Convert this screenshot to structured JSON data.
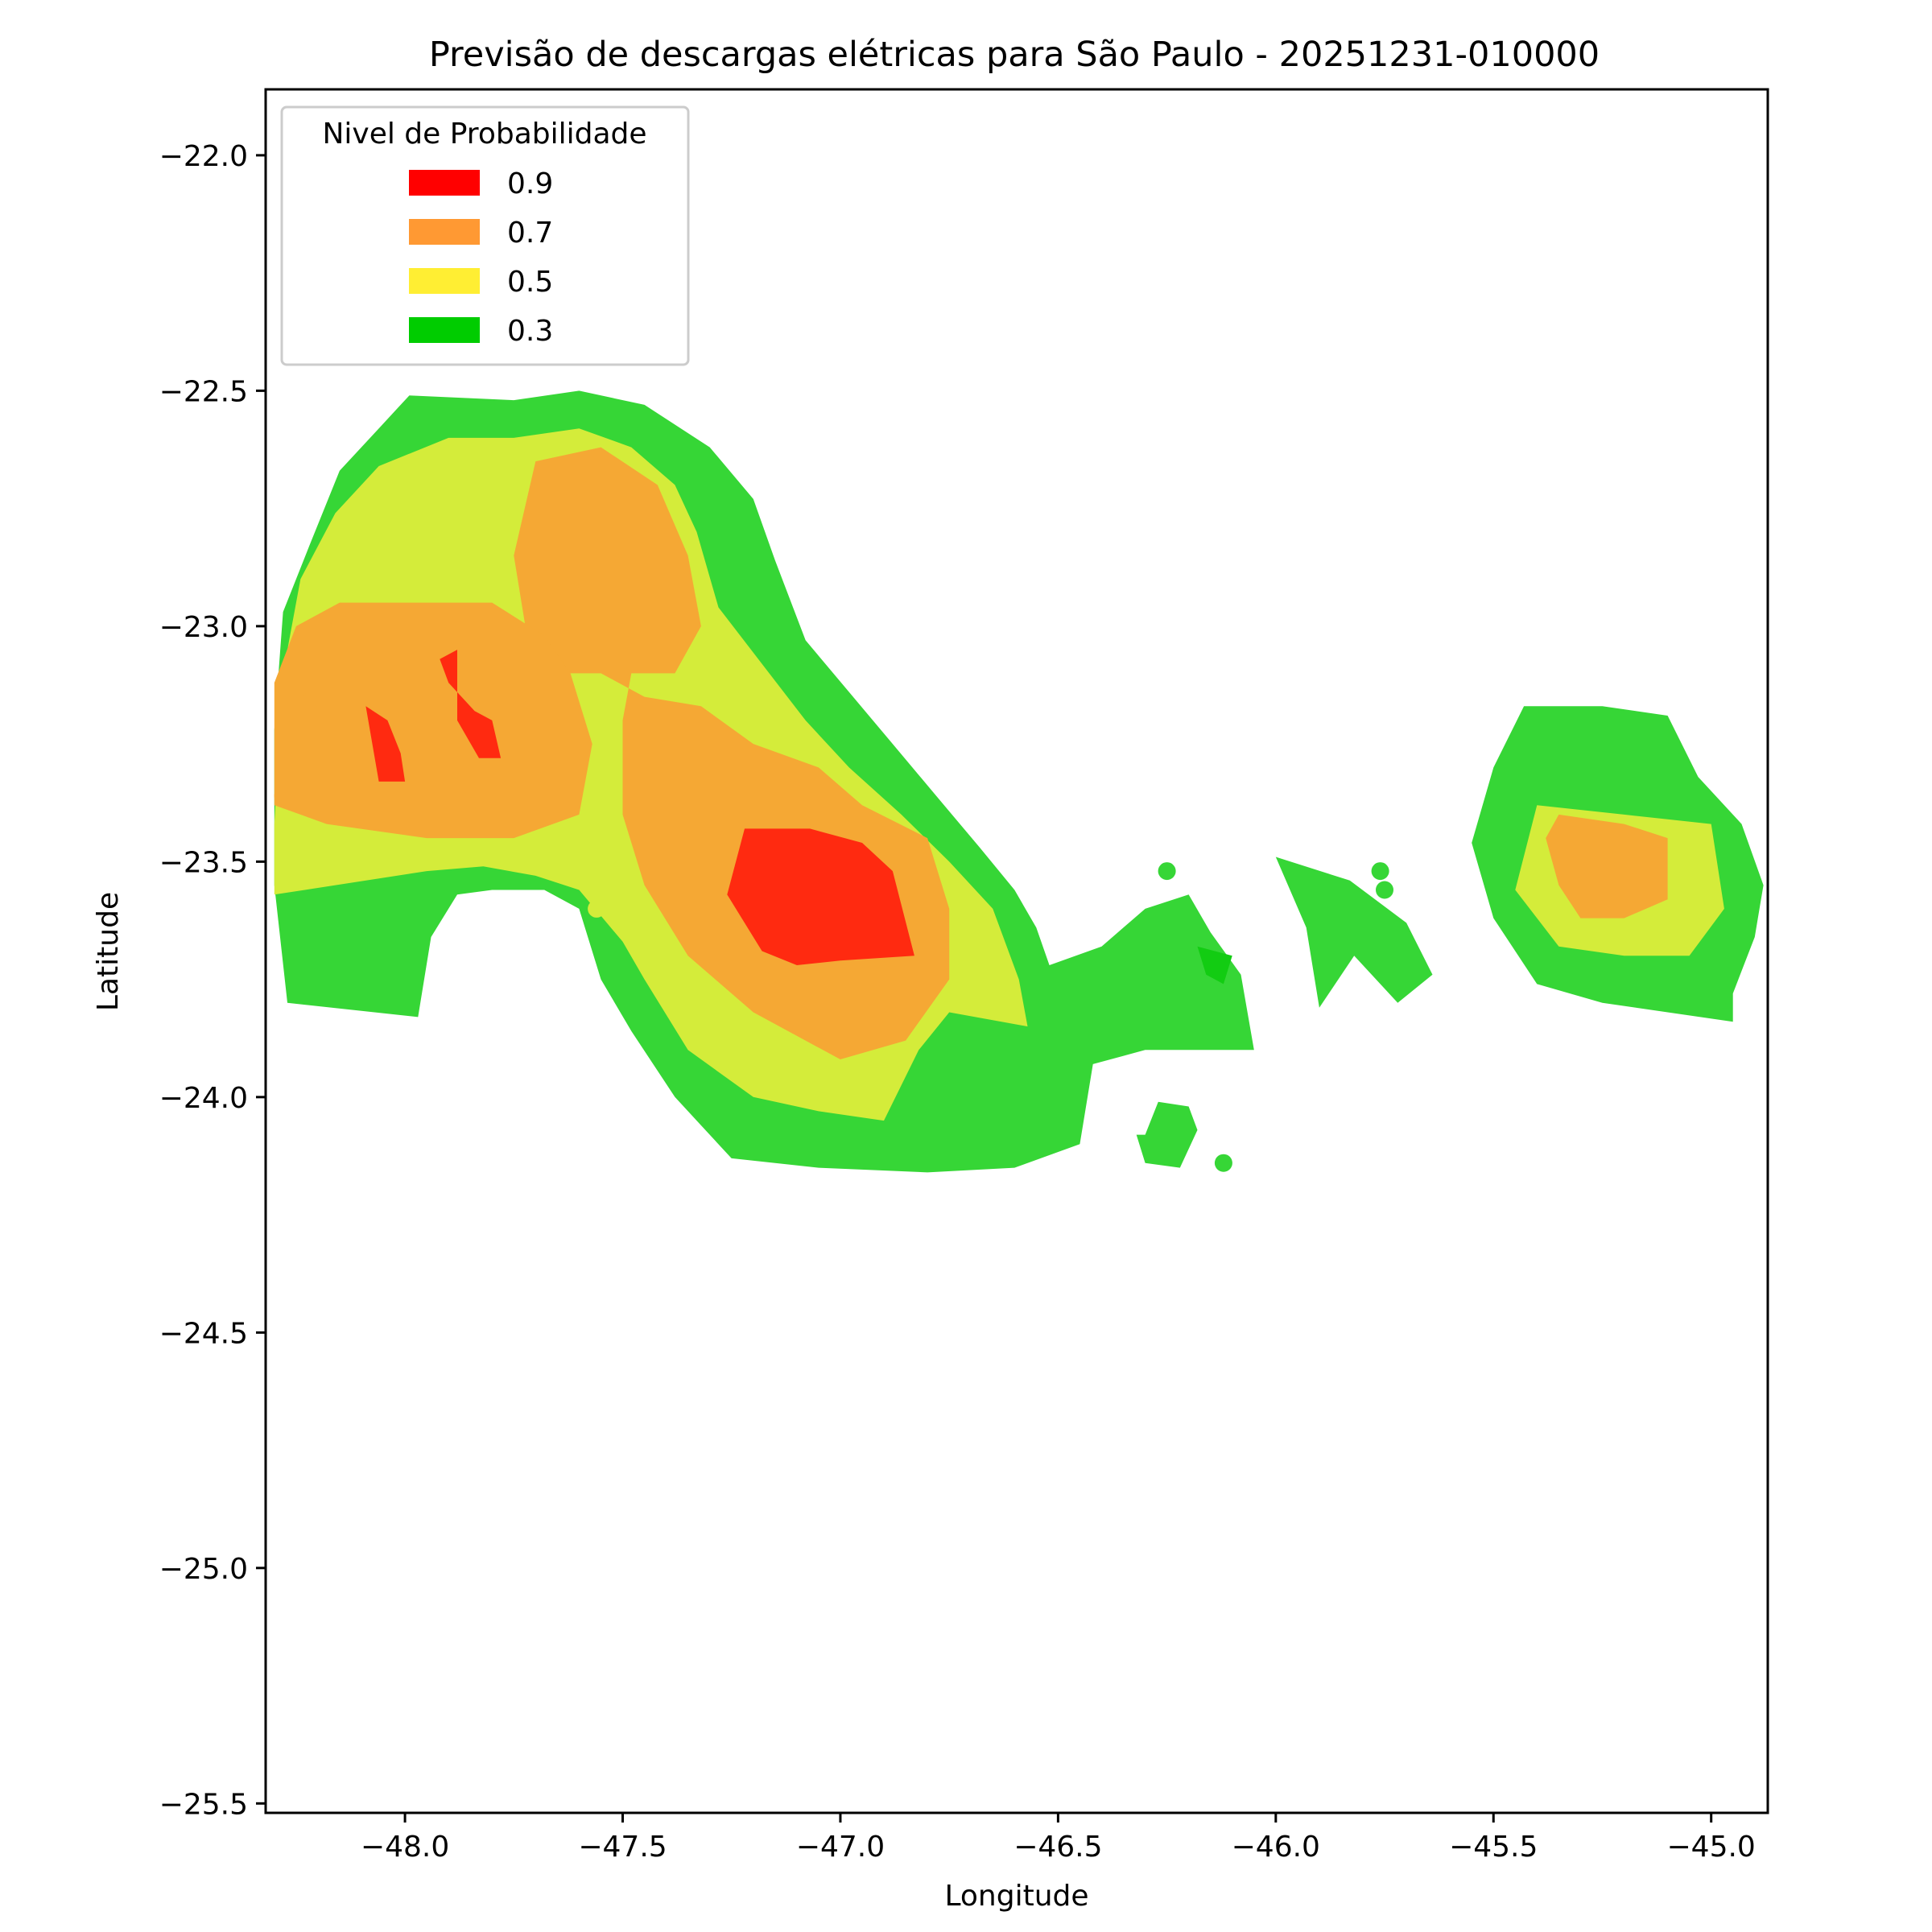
{
  "chart_data": {
    "type": "filled-contour-map",
    "title": "Previsão de descargas elétricas para São Paulo - 20251231-010000",
    "xlabel": "Longitude",
    "ylabel": "Latitude",
    "xlim": [
      -48.32,
      -44.87
    ],
    "ylim": [
      -25.52,
      -21.86
    ],
    "xticks": [
      -48.0,
      -47.5,
      -47.0,
      -46.5,
      -46.0,
      -45.5,
      -45.0
    ],
    "yticks": [
      -22.0,
      -22.5,
      -23.0,
      -23.5,
      -24.0,
      -24.5,
      -25.0,
      -25.5
    ],
    "xtick_labels": [
      "−48.0",
      "−47.5",
      "−47.0",
      "−46.5",
      "−46.0",
      "−45.5",
      "−45.0"
    ],
    "ytick_labels": [
      "−22.0",
      "−22.5",
      "−23.0",
      "−23.5",
      "−24.0",
      "−24.5",
      "−25.0",
      "−25.5"
    ],
    "grid": false,
    "legend": {
      "title": "Nivel de Probabilidade",
      "placement": "upper-left",
      "entries": [
        {
          "label": "0.9",
          "color": "#ff0000"
        },
        {
          "label": "0.7",
          "color": "#ff9933"
        },
        {
          "label": "0.5",
          "color": "#ffee33"
        },
        {
          "label": "0.3",
          "color": "#00cc00"
        }
      ]
    },
    "fill_colors": {
      "0.3": "#36d636",
      "0.5": "#d4ec3a",
      "0.7": "#f5a834",
      "0.9": "#ff2a10",
      "0.3_dot": "#12cc12"
    },
    "regions": [
      {
        "level": "0.3",
        "coords": [
          [
            -47.99,
            -22.51
          ],
          [
            -47.75,
            -22.52
          ],
          [
            -47.6,
            -22.5
          ],
          [
            -47.45,
            -22.53
          ],
          [
            -47.3,
            -22.62
          ],
          [
            -47.2,
            -22.73
          ],
          [
            -47.15,
            -22.86
          ],
          [
            -47.08,
            -23.03
          ],
          [
            -46.98,
            -23.14
          ],
          [
            -46.88,
            -23.25
          ],
          [
            -46.78,
            -23.36
          ],
          [
            -46.68,
            -23.47
          ],
          [
            -46.6,
            -23.56
          ],
          [
            -46.55,
            -23.64
          ],
          [
            -46.52,
            -23.72
          ],
          [
            -46.4,
            -23.68
          ],
          [
            -46.3,
            -23.6
          ],
          [
            -46.2,
            -23.57
          ],
          [
            -46.15,
            -23.65
          ],
          [
            -46.08,
            -23.74
          ],
          [
            -46.05,
            -23.9
          ],
          [
            -46.3,
            -23.9
          ],
          [
            -46.42,
            -23.93
          ],
          [
            -46.45,
            -24.1
          ],
          [
            -46.6,
            -24.15
          ],
          [
            -46.8,
            -24.16
          ],
          [
            -47.05,
            -24.15
          ],
          [
            -47.25,
            -24.13
          ],
          [
            -47.38,
            -24.0
          ],
          [
            -47.48,
            -23.86
          ],
          [
            -47.55,
            -23.75
          ],
          [
            -47.6,
            -23.6
          ],
          [
            -47.68,
            -23.56
          ],
          [
            -47.8,
            -23.56
          ],
          [
            -47.88,
            -23.57
          ],
          [
            -47.94,
            -23.66
          ],
          [
            -47.97,
            -23.83
          ],
          [
            -48.27,
            -23.8
          ],
          [
            -48.3,
            -23.55
          ],
          [
            -48.3,
            -23.22
          ],
          [
            -48.28,
            -22.97
          ],
          [
            -48.22,
            -22.83
          ],
          [
            -48.15,
            -22.67
          ],
          [
            -48.06,
            -22.58
          ]
        ]
      },
      {
        "level": "0.3",
        "coords": [
          [
            -46.0,
            -23.49
          ],
          [
            -45.83,
            -23.54
          ],
          [
            -45.7,
            -23.63
          ],
          [
            -45.64,
            -23.74
          ],
          [
            -45.72,
            -23.8
          ],
          [
            -45.82,
            -23.7
          ],
          [
            -45.9,
            -23.81
          ],
          [
            -45.93,
            -23.64
          ]
        ]
      },
      {
        "level": "0.3",
        "coords": [
          [
            -46.27,
            -24.01
          ],
          [
            -46.2,
            -24.02
          ],
          [
            -46.18,
            -24.07
          ],
          [
            -46.22,
            -24.15
          ],
          [
            -46.3,
            -24.14
          ],
          [
            -46.32,
            -24.08
          ],
          [
            -46.3,
            -24.08
          ]
        ]
      },
      {
        "level": "0.3",
        "coords": [
          [
            -45.43,
            -23.17
          ],
          [
            -45.25,
            -23.17
          ],
          [
            -45.1,
            -23.19
          ],
          [
            -45.03,
            -23.32
          ],
          [
            -44.93,
            -23.42
          ],
          [
            -44.88,
            -23.55
          ],
          [
            -44.9,
            -23.66
          ],
          [
            -44.95,
            -23.78
          ],
          [
            -44.95,
            -23.84
          ],
          [
            -45.1,
            -23.82
          ],
          [
            -45.25,
            -23.8
          ],
          [
            -45.4,
            -23.76
          ],
          [
            -45.5,
            -23.62
          ],
          [
            -45.55,
            -23.46
          ],
          [
            -45.5,
            -23.3
          ]
        ]
      },
      {
        "level": "0.5",
        "coords": [
          [
            -47.9,
            -22.6
          ],
          [
            -47.75,
            -22.6
          ],
          [
            -47.6,
            -22.58
          ],
          [
            -47.48,
            -22.62
          ],
          [
            -47.38,
            -22.7
          ],
          [
            -47.33,
            -22.8
          ],
          [
            -47.28,
            -22.96
          ],
          [
            -47.18,
            -23.08
          ],
          [
            -47.08,
            -23.2
          ],
          [
            -46.98,
            -23.3
          ],
          [
            -46.86,
            -23.4
          ],
          [
            -46.75,
            -23.5
          ],
          [
            -46.65,
            -23.6
          ],
          [
            -46.59,
            -23.75
          ],
          [
            -46.57,
            -23.85
          ],
          [
            -46.75,
            -23.82
          ],
          [
            -46.82,
            -23.9
          ],
          [
            -46.9,
            -24.05
          ],
          [
            -47.05,
            -24.03
          ],
          [
            -47.2,
            -24.0
          ],
          [
            -47.35,
            -23.9
          ],
          [
            -47.45,
            -23.75
          ],
          [
            -47.5,
            -23.67
          ],
          [
            -47.6,
            -23.56
          ],
          [
            -47.7,
            -23.53
          ],
          [
            -47.82,
            -23.51
          ],
          [
            -47.95,
            -23.52
          ],
          [
            -48.3,
            -23.57
          ],
          [
            -48.3,
            -23.42
          ],
          [
            -48.28,
            -23.1
          ],
          [
            -48.24,
            -22.9
          ],
          [
            -48.16,
            -22.76
          ],
          [
            -48.06,
            -22.66
          ]
        ]
      },
      {
        "level": "0.5",
        "coords": [
          [
            -45.4,
            -23.38
          ],
          [
            -45.2,
            -23.4
          ],
          [
            -45.0,
            -23.42
          ],
          [
            -44.97,
            -23.6
          ],
          [
            -45.05,
            -23.7
          ],
          [
            -45.2,
            -23.7
          ],
          [
            -45.35,
            -23.68
          ],
          [
            -45.45,
            -23.56
          ]
        ]
      },
      {
        "level": "0.7",
        "coords": [
          [
            -47.7,
            -22.65
          ],
          [
            -47.55,
            -22.62
          ],
          [
            -47.42,
            -22.7
          ],
          [
            -47.35,
            -22.85
          ],
          [
            -47.32,
            -23.0
          ],
          [
            -47.38,
            -23.1
          ],
          [
            -47.48,
            -23.1
          ],
          [
            -47.5,
            -23.2
          ],
          [
            -47.5,
            -23.4
          ],
          [
            -47.45,
            -23.55
          ],
          [
            -47.35,
            -23.7
          ],
          [
            -47.2,
            -23.82
          ],
          [
            -47.0,
            -23.92
          ],
          [
            -46.85,
            -23.88
          ],
          [
            -46.75,
            -23.75
          ],
          [
            -46.75,
            -23.6
          ],
          [
            -46.8,
            -23.45
          ],
          [
            -46.95,
            -23.38
          ],
          [
            -47.05,
            -23.3
          ],
          [
            -47.2,
            -23.25
          ],
          [
            -47.32,
            -23.17
          ],
          [
            -47.45,
            -23.15
          ],
          [
            -47.55,
            -23.1
          ],
          [
            -47.65,
            -23.1
          ],
          [
            -47.72,
            -23.02
          ],
          [
            -47.75,
            -22.85
          ]
        ]
      },
      {
        "level": "0.7",
        "coords": [
          [
            -48.15,
            -22.95
          ],
          [
            -47.95,
            -22.95
          ],
          [
            -47.8,
            -22.95
          ],
          [
            -47.68,
            -23.02
          ],
          [
            -47.62,
            -23.1
          ],
          [
            -47.57,
            -23.25
          ],
          [
            -47.6,
            -23.4
          ],
          [
            -47.75,
            -23.45
          ],
          [
            -47.95,
            -23.45
          ],
          [
            -48.18,
            -23.42
          ],
          [
            -48.3,
            -23.38
          ],
          [
            -48.3,
            -23.12
          ],
          [
            -48.25,
            -23.0
          ]
        ]
      },
      {
        "level": "0.7",
        "coords": [
          [
            -45.35,
            -23.4
          ],
          [
            -45.2,
            -23.42
          ],
          [
            -45.1,
            -23.45
          ],
          [
            -45.1,
            -23.58
          ],
          [
            -45.2,
            -23.62
          ],
          [
            -45.3,
            -23.62
          ],
          [
            -45.35,
            -23.55
          ],
          [
            -45.38,
            -23.45
          ]
        ]
      },
      {
        "level": "0.9",
        "coords": [
          [
            -47.22,
            -23.43
          ],
          [
            -47.07,
            -23.43
          ],
          [
            -46.95,
            -23.46
          ],
          [
            -46.88,
            -23.52
          ],
          [
            -46.83,
            -23.7
          ],
          [
            -47.0,
            -23.71
          ],
          [
            -47.1,
            -23.72
          ],
          [
            -47.18,
            -23.69
          ],
          [
            -47.26,
            -23.57
          ]
        ]
      },
      {
        "level": "0.9",
        "coords": [
          [
            -48.09,
            -23.17
          ],
          [
            -48.04,
            -23.2
          ],
          [
            -48.01,
            -23.27
          ],
          [
            -48.0,
            -23.33
          ],
          [
            -48.06,
            -23.33
          ]
        ]
      },
      {
        "level": "0.9",
        "coords": [
          [
            -47.88,
            -23.05
          ],
          [
            -47.92,
            -23.07
          ],
          [
            -47.9,
            -23.12
          ],
          [
            -47.84,
            -23.18
          ],
          [
            -47.8,
            -23.2
          ],
          [
            -47.78,
            -23.28
          ],
          [
            -47.83,
            -23.28
          ],
          [
            -47.88,
            -23.2
          ]
        ]
      },
      {
        "level": "0.3_dot",
        "coords": [
          [
            -46.18,
            -23.68
          ],
          [
            -46.1,
            -23.7
          ],
          [
            -46.12,
            -23.76
          ],
          [
            -46.16,
            -23.74
          ]
        ]
      }
    ],
    "markers": [
      {
        "level": "0.3",
        "x": -46.25,
        "y": -23.52
      },
      {
        "level": "0.3",
        "x": -45.76,
        "y": -23.52
      },
      {
        "level": "0.3",
        "x": -45.75,
        "y": -23.56
      },
      {
        "level": "0.3",
        "x": -46.12,
        "y": -24.14
      },
      {
        "level": "0.5",
        "x": -47.56,
        "y": -23.6
      },
      {
        "level": "0.7",
        "x": -47.61,
        "y": -23.2
      },
      {
        "level": "0.7",
        "x": -48.22,
        "y": -23.16
      },
      {
        "level": "0.7",
        "x": -48.28,
        "y": -23.36
      }
    ]
  }
}
